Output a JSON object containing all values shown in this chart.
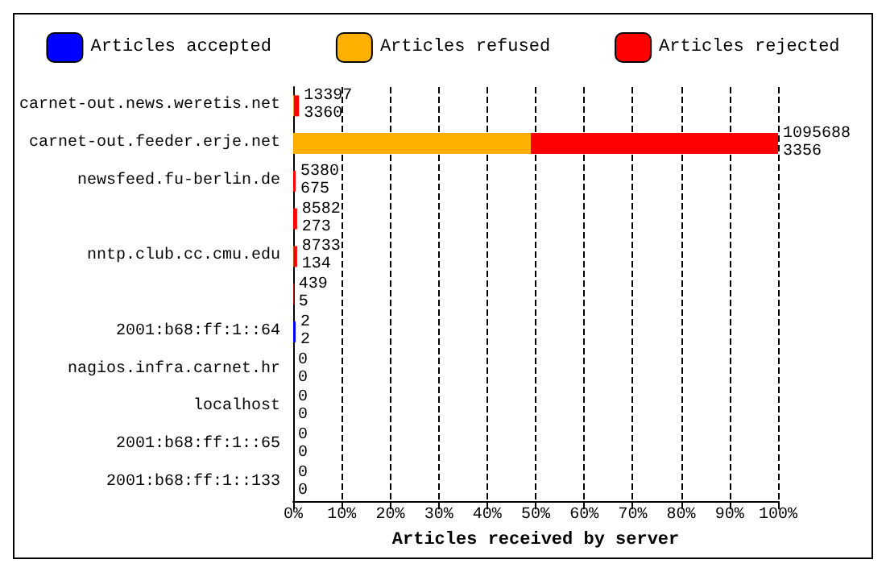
{
  "chart_data": {
    "type": "bar",
    "orientation": "horizontal",
    "stacked": true,
    "xlabel": "Articles received by server",
    "categories": [
      "carnet-out.news.weretis.net",
      "carnet-out.feeder.erje.net",
      "newsfeed.fu-berlin.de",
      null,
      "nntp.club.cc.cmu.edu",
      null,
      "2001:b68:ff:1::64",
      "nagios.infra.carnet.hr",
      "localhost",
      "2001:b68:ff:1::65",
      "2001:b68:ff:1::133"
    ],
    "series": [
      {
        "name": "Articles accepted",
        "color": "#0000ff",
        "values": [
          0,
          0,
          0,
          0,
          0,
          0,
          0.5,
          0,
          0,
          0,
          0
        ]
      },
      {
        "name": "Articles refused",
        "color": "#ffb000",
        "values": [
          0.2,
          49,
          0,
          0,
          0.1,
          0,
          0,
          0,
          0,
          0,
          0
        ]
      },
      {
        "name": "Articles rejected",
        "color": "#ff0000",
        "values": [
          1.0,
          51,
          0.5,
          0.8,
          0.7,
          0.1,
          0,
          0,
          0,
          0,
          0
        ]
      }
    ],
    "annotations": [
      "13397\n3360",
      "1095688\n3356",
      "5380\n675",
      "8582\n273",
      "8733\n134",
      "439\n5",
      "2\n2",
      "0\n0",
      "0\n0",
      "0\n0",
      "0\n0"
    ],
    "xlim": [
      0,
      100
    ],
    "xticks": [
      {
        "value": 0,
        "label": "0%"
      },
      {
        "value": 10,
        "label": "10%"
      },
      {
        "value": 20,
        "label": "20%"
      },
      {
        "value": 30,
        "label": "30%"
      },
      {
        "value": 40,
        "label": "40%"
      },
      {
        "value": 50,
        "label": "50%"
      },
      {
        "value": 60,
        "label": "60%"
      },
      {
        "value": 70,
        "label": "70%"
      },
      {
        "value": 80,
        "label": "80%"
      },
      {
        "value": 90,
        "label": "90%"
      },
      {
        "value": 100,
        "label": "100%"
      }
    ],
    "grid": "x",
    "legend": "top"
  }
}
